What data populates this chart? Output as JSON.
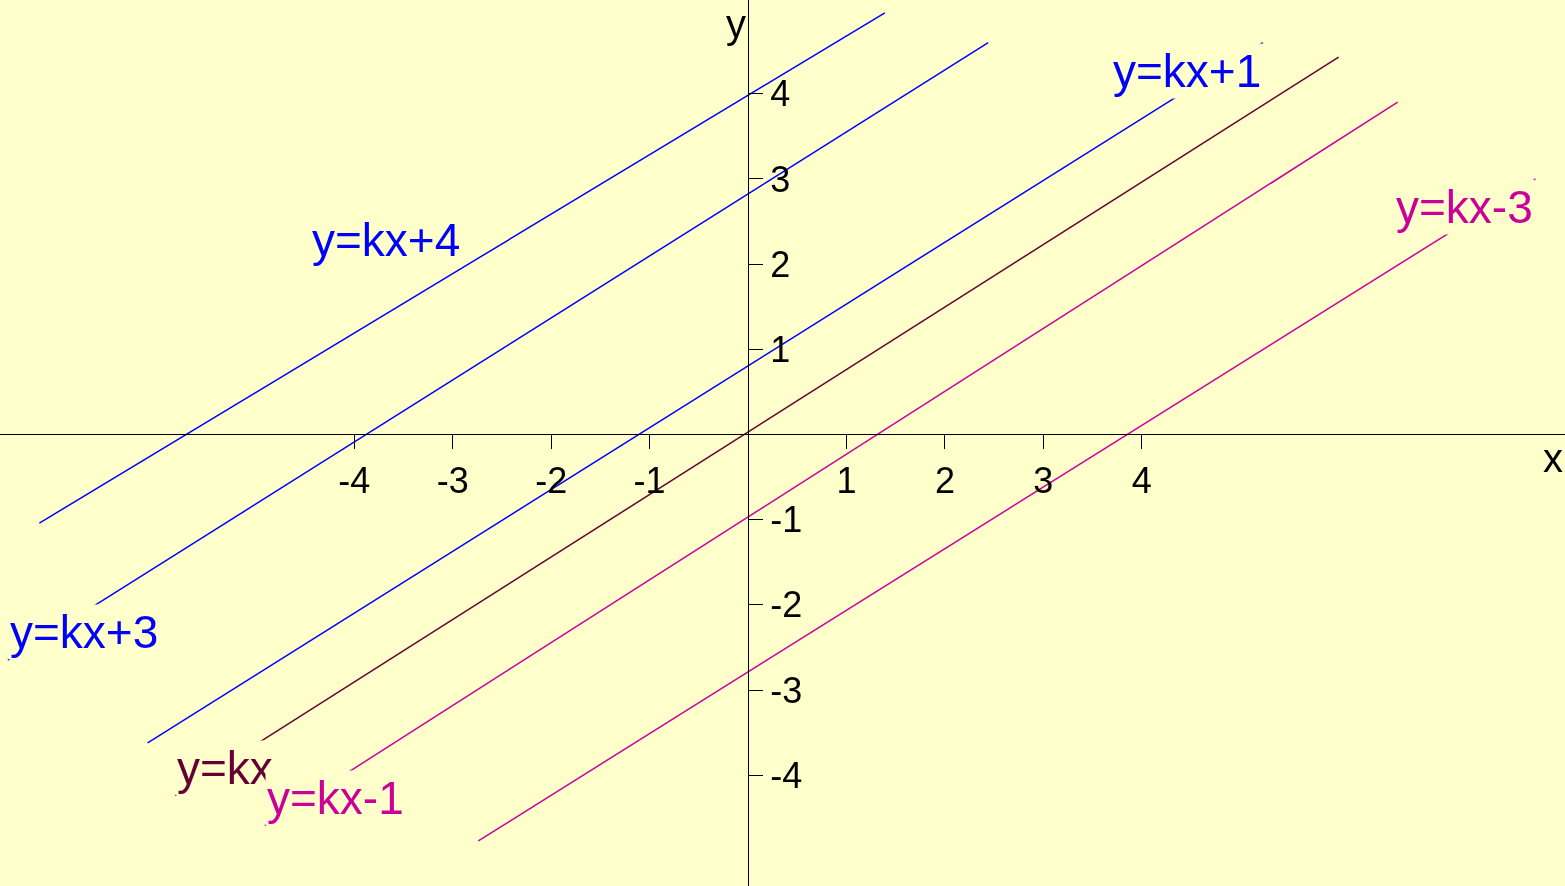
{
  "chart_data": {
    "type": "line",
    "xlabel": "x",
    "ylabel": "y",
    "xlim": [
      -7.6,
      8.3
    ],
    "ylim": [
      -5.3,
      5.1
    ],
    "xticks": [
      -4,
      -3,
      -2,
      -1,
      1,
      2,
      3,
      4
    ],
    "yticks": [
      -4,
      -3,
      -2,
      -1,
      1,
      2,
      3,
      4
    ],
    "grid": false,
    "legend": false,
    "marker": "none",
    "line_style": "solid",
    "series": [
      {
        "name": "y=kx+4",
        "color": "#0000ff",
        "x": [
          -7.2,
          1.39
        ],
        "values": [
          -1.04,
          4.95
        ]
      },
      {
        "name": "y=kx+3",
        "color": "#0000ff",
        "x": [
          -7.52,
          2.44
        ],
        "values": [
          -2.65,
          4.6
        ]
      },
      {
        "name": "y=kx+1",
        "color": "#0000ff",
        "x": [
          -6.1,
          5.23
        ],
        "values": [
          -3.62,
          4.6
        ]
      },
      {
        "name": "y=kx",
        "color": "#660033",
        "x": [
          -5.82,
          6.0
        ],
        "values": [
          -4.24,
          4.43
        ]
      },
      {
        "name": "y=kx-1",
        "color": "#cc0099",
        "x": [
          -4.91,
          6.6
        ],
        "values": [
          -4.59,
          3.9
        ]
      },
      {
        "name": "y=kx-3",
        "color": "#cc0099",
        "x": [
          -2.74,
          8.0
        ],
        "values": [
          -4.77,
          3.0
        ]
      }
    ]
  }
}
